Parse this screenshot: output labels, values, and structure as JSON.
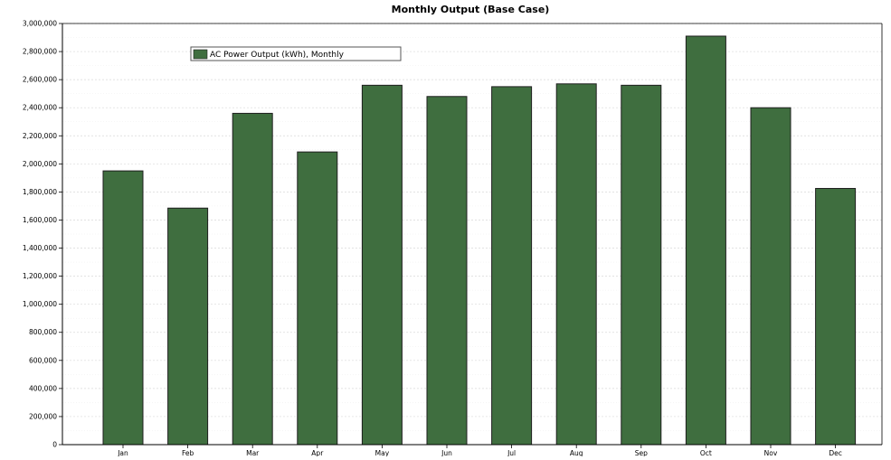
{
  "chart_data": {
    "type": "bar",
    "title": "Monthly Output (Base Case)",
    "xlabel": "",
    "ylabel": "",
    "categories": [
      "Jan",
      "Feb",
      "Mar",
      "Apr",
      "May",
      "Jun",
      "Jul",
      "Aug",
      "Sep",
      "Oct",
      "Nov",
      "Dec"
    ],
    "series": [
      {
        "name": "AC Power Output (kWh), Monthly",
        "values": [
          1950000,
          1685000,
          2360000,
          2085000,
          2560000,
          2480000,
          2550000,
          2570000,
          2560000,
          2910000,
          2400000,
          1825000
        ],
        "color": "#3f6e3f"
      }
    ],
    "ylim": [
      0,
      3000000
    ],
    "yticks": [
      0,
      200000,
      400000,
      600000,
      800000,
      1000000,
      1200000,
      1400000,
      1600000,
      1800000,
      2000000,
      2200000,
      2400000,
      2600000,
      2800000,
      3000000
    ],
    "ytick_labels": [
      "0",
      "200,000",
      "400,000",
      "600,000",
      "800,000",
      "1,000,000",
      "1,200,000",
      "1,400,000",
      "1,600,000",
      "1,800,000",
      "2,000,000",
      "2,200,000",
      "2,400,000",
      "2,600,000",
      "2,800,000",
      "3,000,000"
    ],
    "grid": true,
    "legend_position": "top-left"
  }
}
